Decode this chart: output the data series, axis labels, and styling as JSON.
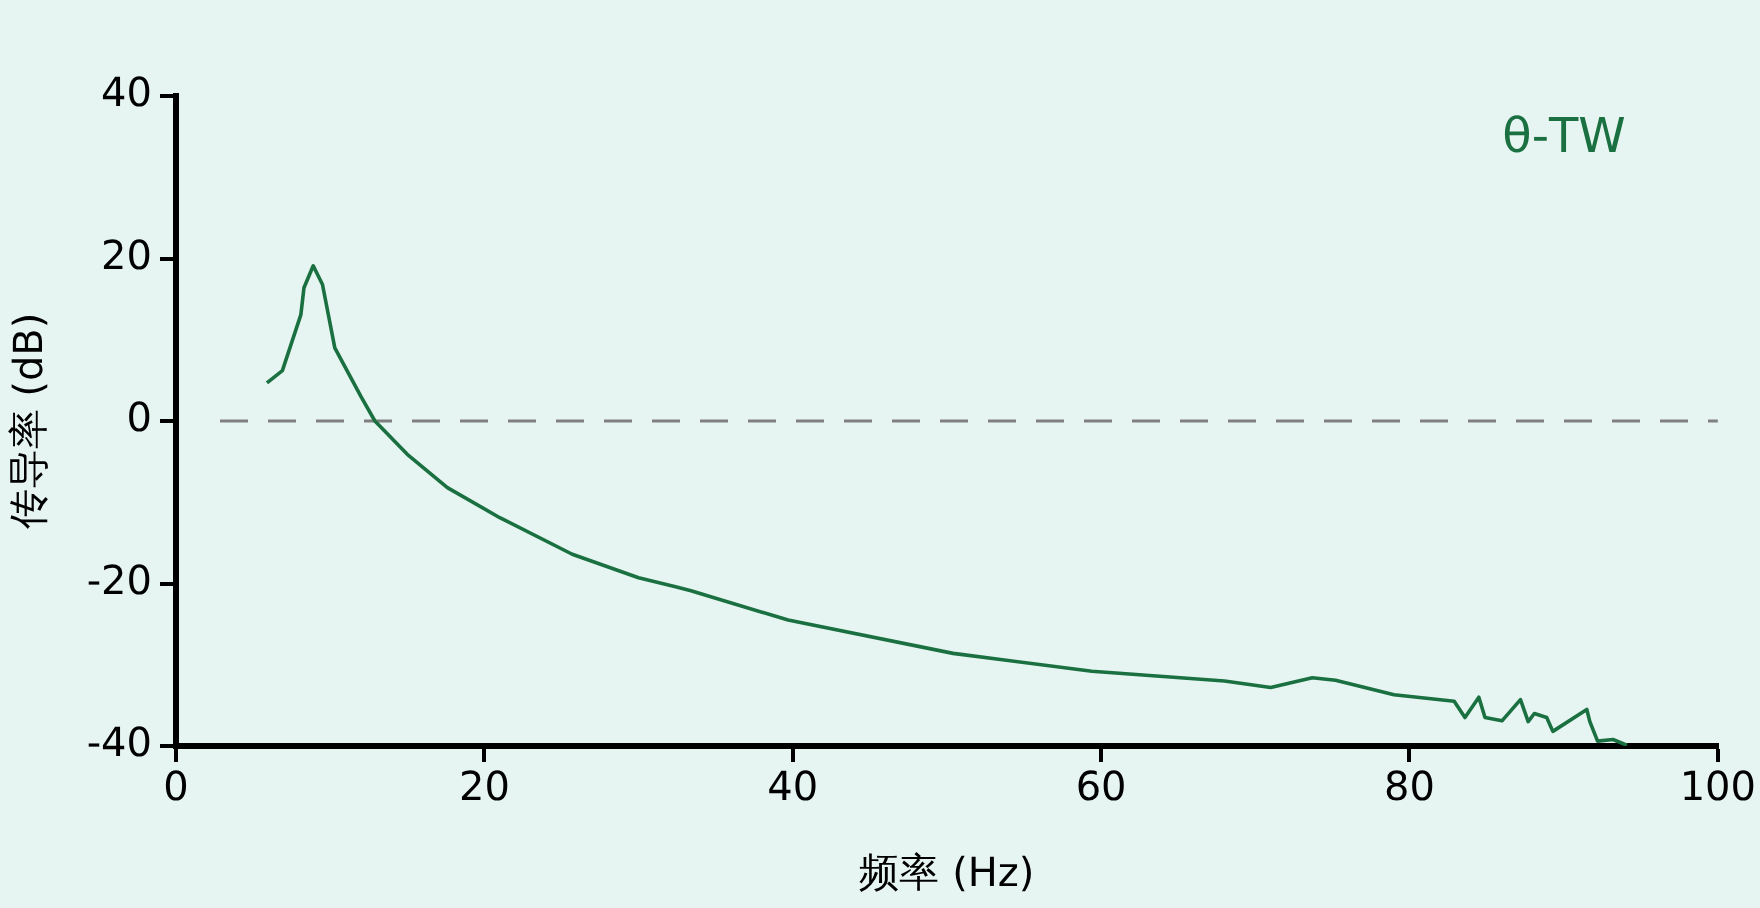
{
  "chart_data": {
    "type": "line",
    "xlabel": "频率 (Hz)",
    "ylabel": "传导率 (dB)",
    "xlim": [
      0,
      100
    ],
    "xticks": [
      0,
      20,
      40,
      60,
      80,
      100
    ],
    "ylim": [
      -40,
      40
    ],
    "yticks": [
      -40,
      -20,
      0,
      20,
      40
    ],
    "grid": false,
    "legend": "top right",
    "marker": "none",
    "line_style": "solid",
    "ref_lines": [
      {
        "axis": "y",
        "value": 0,
        "color": "#808080",
        "line_style": "dashed"
      }
    ],
    "series": [
      {
        "name": "θ-TW",
        "color": "#1a7040",
        "x": [
          5.9,
          6.9,
          8.1,
          8.3,
          8.9,
          9.5,
          10.3,
          12.0,
          12.9,
          15,
          17.6,
          21,
          25.7,
          30,
          32.4,
          33.4,
          39.7,
          50.4,
          59.4,
          68,
          71,
          73.7,
          75.2,
          79,
          82.9,
          83.6,
          84.5,
          84.9,
          86,
          87.2,
          87.7,
          88.1,
          88.9,
          89.3,
          91.5,
          91.7,
          92.2,
          93.2,
          94.1
        ],
        "values": [
          4.7,
          6.2,
          13.1,
          16.4,
          19.1,
          16.8,
          9,
          3,
          0,
          -4.1,
          -8.2,
          -11.9,
          -16.4,
          -19.3,
          -20.4,
          -20.9,
          -24.5,
          -28.6,
          -30.8,
          -32,
          -32.8,
          -31.6,
          -31.9,
          -33.7,
          -34.5,
          -36.5,
          -34,
          -36.5,
          -36.9,
          -34.3,
          -37,
          -36,
          -36.5,
          -38.2,
          -35.5,
          -37,
          -39.4,
          -39.2,
          -39.9
        ]
      }
    ]
  }
}
